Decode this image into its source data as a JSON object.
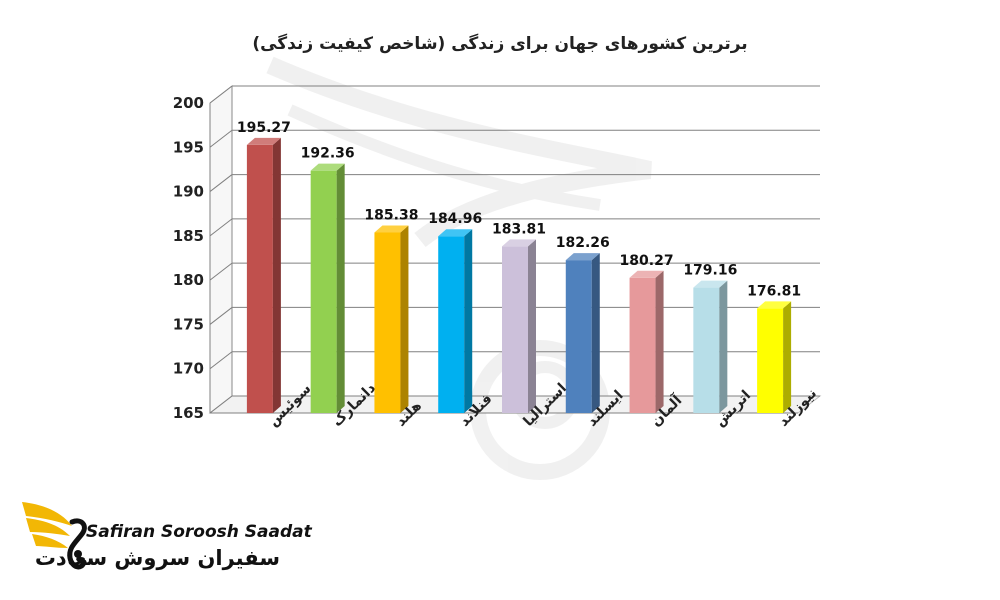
{
  "chart_data": {
    "type": "bar",
    "title": "برترین کشورهای جهان برای زندگی (شاخص کیفیت زندگی)",
    "categories": [
      "سوئیس",
      "دانمارک",
      "هلند",
      "فنلاند",
      "استرالیا",
      "ایسلند",
      "آلمان",
      "اتریش",
      "نیوزلند"
    ],
    "values": [
      195.27,
      192.36,
      185.38,
      184.96,
      183.81,
      182.26,
      180.27,
      179.16,
      176.81
    ],
    "colors": [
      "#c0504d",
      "#92d050",
      "#ffc000",
      "#00b0f0",
      "#ccc0da",
      "#4f81bd",
      "#e6999b",
      "#b7dee8",
      "#ffff00"
    ],
    "ylim": [
      165,
      200
    ],
    "yticks": [
      165,
      170,
      175,
      180,
      185,
      190,
      195,
      200
    ],
    "grid": true,
    "style": "3d-bar"
  },
  "logo": {
    "latin": "Safiran Soroosh Saadat",
    "persian": "سفیران سروش سعادت"
  }
}
